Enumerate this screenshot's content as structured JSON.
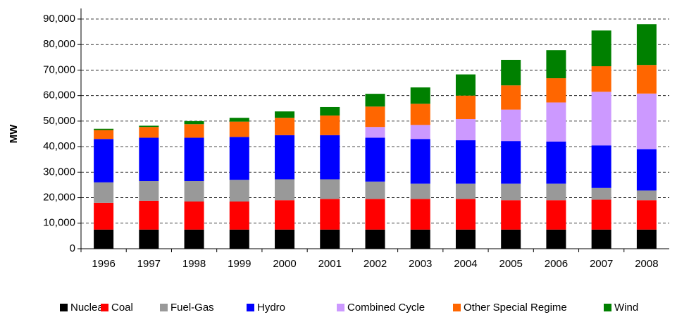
{
  "chart_data": {
    "type": "stacked_bar",
    "y_label": "MW",
    "categories": [
      "1996",
      "1997",
      "1998",
      "1999",
      "2000",
      "2001",
      "2002",
      "2003",
      "2004",
      "2005",
      "2006",
      "2007",
      "2008"
    ],
    "series": [
      {
        "name": "Nuclear",
        "color": "#000000",
        "values": [
          7500,
          7500,
          7500,
          7500,
          7500,
          7500,
          7500,
          7500,
          7500,
          7500,
          7500,
          7500,
          7500
        ]
      },
      {
        "name": "Coal",
        "color": "#ff0000",
        "values": [
          10500,
          11300,
          11000,
          11000,
          11500,
          12000,
          12000,
          12000,
          12000,
          11500,
          11500,
          11700,
          11500
        ]
      },
      {
        "name": "Fuel-Gas",
        "color": "#999999",
        "values": [
          8000,
          7700,
          8000,
          8500,
          8200,
          7700,
          6800,
          6000,
          6000,
          6500,
          6500,
          4600,
          3800
        ]
      },
      {
        "name": "Hydro",
        "color": "#0000ff",
        "values": [
          17000,
          17000,
          17000,
          16800,
          17300,
          17300,
          17200,
          17500,
          17000,
          16700,
          16500,
          16700,
          16200
        ]
      },
      {
        "name": "Combined Cycle",
        "color": "#cc99ff",
        "values": [
          0,
          0,
          0,
          0,
          0,
          0,
          4200,
          5500,
          8300,
          12300,
          15300,
          21000,
          21800
        ]
      },
      {
        "name": "Other Special Regime",
        "color": "#ff6600",
        "values": [
          3500,
          4200,
          5300,
          6000,
          6800,
          7700,
          8000,
          8300,
          9200,
          9500,
          9500,
          10000,
          11200
        ]
      },
      {
        "name": "Wind",
        "color": "#008000",
        "values": [
          500,
          500,
          1200,
          1500,
          2500,
          3300,
          5000,
          6400,
          8300,
          10000,
          11000,
          14000,
          16000
        ]
      }
    ],
    "ylim": [
      0,
      90000
    ],
    "yticks": [
      0,
      {
        "value": 10000,
        "label": "10,000"
      },
      {
        "value": 20000,
        "label": "20,000"
      },
      {
        "value": 30000,
        "label": "30,000"
      },
      {
        "value": 40000,
        "label": "40,000"
      },
      {
        "value": 50000,
        "label": "50,000"
      },
      {
        "value": 60000,
        "label": "60,000"
      },
      {
        "value": 70000,
        "label": "70,000"
      },
      {
        "value": 80000,
        "label": "80,000"
      },
      {
        "value": 90000,
        "label": "90,000"
      }
    ],
    "grid": true,
    "legend": "bottom"
  }
}
